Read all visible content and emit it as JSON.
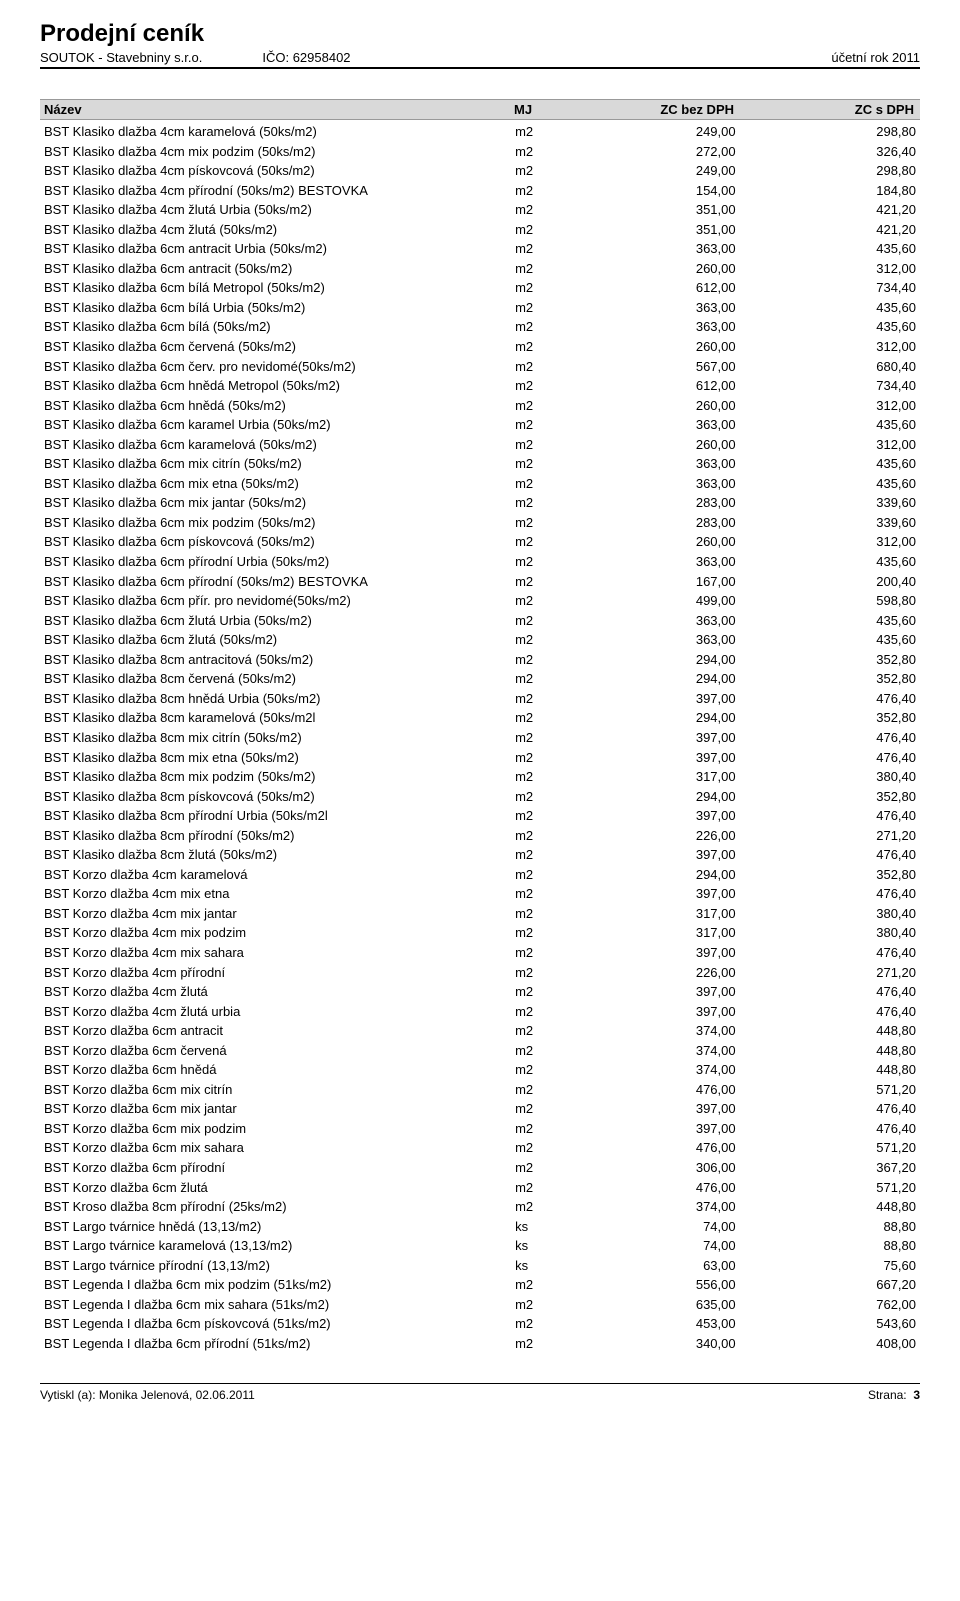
{
  "header": {
    "title": "Prodejní ceník",
    "company": "SOUTOK - Stavebniny  s.r.o.",
    "ico_label": "IČO:",
    "ico": "62958402",
    "year_label": "účetní rok  2011"
  },
  "columns": {
    "name": "Název",
    "mj": "MJ",
    "zc_bez": "ZC bez DPH",
    "zc_s": "ZC s DPH"
  },
  "rows": [
    {
      "name": "BST Klasiko dlažba 4cm karamelová (50ks/m2)",
      "mj": "m2",
      "p1": "249,00",
      "p2": "298,80"
    },
    {
      "name": "BST Klasiko dlažba 4cm mix podzim (50ks/m2)",
      "mj": "m2",
      "p1": "272,00",
      "p2": "326,40"
    },
    {
      "name": "BST Klasiko dlažba 4cm pískovcová (50ks/m2)",
      "mj": "m2",
      "p1": "249,00",
      "p2": "298,80"
    },
    {
      "name": "BST Klasiko dlažba 4cm přírodní (50ks/m2) BESTOVKA",
      "mj": "m2",
      "p1": "154,00",
      "p2": "184,80"
    },
    {
      "name": "BST Klasiko dlažba 4cm žlutá Urbia (50ks/m2)",
      "mj": "m2",
      "p1": "351,00",
      "p2": "421,20"
    },
    {
      "name": "BST Klasiko dlažba 4cm žlutá (50ks/m2)",
      "mj": "m2",
      "p1": "351,00",
      "p2": "421,20"
    },
    {
      "name": "BST Klasiko dlažba 6cm antracit Urbia (50ks/m2)",
      "mj": "m2",
      "p1": "363,00",
      "p2": "435,60"
    },
    {
      "name": "BST Klasiko dlažba 6cm antracit (50ks/m2)",
      "mj": "m2",
      "p1": "260,00",
      "p2": "312,00"
    },
    {
      "name": "BST Klasiko dlažba 6cm bílá Metropol (50ks/m2)",
      "mj": "m2",
      "p1": "612,00",
      "p2": "734,40"
    },
    {
      "name": "BST Klasiko dlažba 6cm bílá Urbia (50ks/m2)",
      "mj": "m2",
      "p1": "363,00",
      "p2": "435,60"
    },
    {
      "name": "BST Klasiko dlažba 6cm bílá (50ks/m2)",
      "mj": "m2",
      "p1": "363,00",
      "p2": "435,60"
    },
    {
      "name": "BST Klasiko dlažba 6cm červená (50ks/m2)",
      "mj": "m2",
      "p1": "260,00",
      "p2": "312,00"
    },
    {
      "name": "BST Klasiko dlažba 6cm červ. pro nevidomé(50ks/m2)",
      "mj": "m2",
      "p1": "567,00",
      "p2": "680,40"
    },
    {
      "name": "BST Klasiko dlažba 6cm hnědá Metropol (50ks/m2)",
      "mj": "m2",
      "p1": "612,00",
      "p2": "734,40"
    },
    {
      "name": "BST Klasiko dlažba 6cm hnědá (50ks/m2)",
      "mj": "m2",
      "p1": "260,00",
      "p2": "312,00"
    },
    {
      "name": "BST Klasiko dlažba 6cm karamel Urbia (50ks/m2)",
      "mj": "m2",
      "p1": "363,00",
      "p2": "435,60"
    },
    {
      "name": "BST Klasiko dlažba 6cm karamelová (50ks/m2)",
      "mj": "m2",
      "p1": "260,00",
      "p2": "312,00"
    },
    {
      "name": "BST Klasiko dlažba 6cm mix citrín (50ks/m2)",
      "mj": "m2",
      "p1": "363,00",
      "p2": "435,60"
    },
    {
      "name": "BST Klasiko dlažba 6cm mix etna (50ks/m2)",
      "mj": "m2",
      "p1": "363,00",
      "p2": "435,60"
    },
    {
      "name": "BST Klasiko dlažba 6cm mix jantar (50ks/m2)",
      "mj": "m2",
      "p1": "283,00",
      "p2": "339,60"
    },
    {
      "name": "BST Klasiko dlažba 6cm mix podzim (50ks/m2)",
      "mj": "m2",
      "p1": "283,00",
      "p2": "339,60"
    },
    {
      "name": "BST Klasiko dlažba 6cm pískovcová (50ks/m2)",
      "mj": "m2",
      "p1": "260,00",
      "p2": "312,00"
    },
    {
      "name": "BST Klasiko dlažba 6cm přírodní Urbia (50ks/m2)",
      "mj": "m2",
      "p1": "363,00",
      "p2": "435,60"
    },
    {
      "name": "BST Klasiko dlažba 6cm přírodní (50ks/m2) BESTOVKA",
      "mj": "m2",
      "p1": "167,00",
      "p2": "200,40"
    },
    {
      "name": "BST Klasiko dlažba 6cm přír. pro nevidomé(50ks/m2)",
      "mj": "m2",
      "p1": "499,00",
      "p2": "598,80"
    },
    {
      "name": "BST Klasiko dlažba 6cm žlutá Urbia (50ks/m2)",
      "mj": "m2",
      "p1": "363,00",
      "p2": "435,60"
    },
    {
      "name": "BST Klasiko dlažba 6cm žlutá (50ks/m2)",
      "mj": "m2",
      "p1": "363,00",
      "p2": "435,60"
    },
    {
      "name": "BST Klasiko dlažba 8cm antracitová (50ks/m2)",
      "mj": "m2",
      "p1": "294,00",
      "p2": "352,80"
    },
    {
      "name": "BST Klasiko dlažba 8cm červená (50ks/m2)",
      "mj": "m2",
      "p1": "294,00",
      "p2": "352,80"
    },
    {
      "name": "BST Klasiko dlažba 8cm hnědá Urbia (50ks/m2)",
      "mj": "m2",
      "p1": "397,00",
      "p2": "476,40"
    },
    {
      "name": "BST Klasiko dlažba 8cm karamelová (50ks/m2l",
      "mj": "m2",
      "p1": "294,00",
      "p2": "352,80"
    },
    {
      "name": "BST Klasiko dlažba 8cm mix citrín (50ks/m2)",
      "mj": "m2",
      "p1": "397,00",
      "p2": "476,40"
    },
    {
      "name": "BST Klasiko dlažba 8cm mix etna (50ks/m2)",
      "mj": "m2",
      "p1": "397,00",
      "p2": "476,40"
    },
    {
      "name": "BST Klasiko dlažba 8cm mix podzim (50ks/m2)",
      "mj": "m2",
      "p1": "317,00",
      "p2": "380,40"
    },
    {
      "name": "BST Klasiko dlažba 8cm pískovcová (50ks/m2)",
      "mj": "m2",
      "p1": "294,00",
      "p2": "352,80"
    },
    {
      "name": "BST Klasiko dlažba 8cm přírodní Urbia (50ks/m2l",
      "mj": "m2",
      "p1": "397,00",
      "p2": "476,40"
    },
    {
      "name": "BST Klasiko dlažba 8cm přírodní (50ks/m2)",
      "mj": "m2",
      "p1": "226,00",
      "p2": "271,20"
    },
    {
      "name": "BST Klasiko dlažba 8cm žlutá (50ks/m2)",
      "mj": "m2",
      "p1": "397,00",
      "p2": "476,40"
    },
    {
      "name": "BST Korzo dlažba 4cm karamelová",
      "mj": "m2",
      "p1": "294,00",
      "p2": "352,80"
    },
    {
      "name": "BST Korzo dlažba 4cm mix etna",
      "mj": "m2",
      "p1": "397,00",
      "p2": "476,40"
    },
    {
      "name": "BST Korzo dlažba 4cm mix jantar",
      "mj": "m2",
      "p1": "317,00",
      "p2": "380,40"
    },
    {
      "name": "BST Korzo dlažba 4cm mix podzim",
      "mj": "m2",
      "p1": "317,00",
      "p2": "380,40"
    },
    {
      "name": "BST Korzo dlažba 4cm mix sahara",
      "mj": "m2",
      "p1": "397,00",
      "p2": "476,40"
    },
    {
      "name": "BST Korzo dlažba 4cm přírodní",
      "mj": "m2",
      "p1": "226,00",
      "p2": "271,20"
    },
    {
      "name": "BST Korzo dlažba 4cm žlutá",
      "mj": "m2",
      "p1": "397,00",
      "p2": "476,40"
    },
    {
      "name": "BST Korzo dlažba 4cm žlutá urbia",
      "mj": "m2",
      "p1": "397,00",
      "p2": "476,40"
    },
    {
      "name": "BST Korzo dlažba 6cm antracit",
      "mj": "m2",
      "p1": "374,00",
      "p2": "448,80"
    },
    {
      "name": "BST Korzo dlažba 6cm červená",
      "mj": "m2",
      "p1": "374,00",
      "p2": "448,80"
    },
    {
      "name": "BST Korzo dlažba 6cm hnědá",
      "mj": "m2",
      "p1": "374,00",
      "p2": "448,80"
    },
    {
      "name": "BST Korzo dlažba 6cm mix citrín",
      "mj": "m2",
      "p1": "476,00",
      "p2": "571,20"
    },
    {
      "name": "BST Korzo dlažba 6cm mix jantar",
      "mj": "m2",
      "p1": "397,00",
      "p2": "476,40"
    },
    {
      "name": "BST Korzo dlažba 6cm mix podzim",
      "mj": "m2",
      "p1": "397,00",
      "p2": "476,40"
    },
    {
      "name": "BST Korzo dlažba 6cm mix sahara",
      "mj": "m2",
      "p1": "476,00",
      "p2": "571,20"
    },
    {
      "name": "BST Korzo dlažba 6cm přírodní",
      "mj": "m2",
      "p1": "306,00",
      "p2": "367,20"
    },
    {
      "name": "BST Korzo dlažba 6cm žlutá",
      "mj": "m2",
      "p1": "476,00",
      "p2": "571,20"
    },
    {
      "name": "BST Kroso dlažba 8cm přírodní (25ks/m2)",
      "mj": "m2",
      "p1": "374,00",
      "p2": "448,80"
    },
    {
      "name": "BST Largo tvárnice hnědá (13,13/m2)",
      "mj": "ks",
      "p1": "74,00",
      "p2": "88,80"
    },
    {
      "name": "BST Largo tvárnice karamelová (13,13/m2)",
      "mj": "ks",
      "p1": "74,00",
      "p2": "88,80"
    },
    {
      "name": "BST Largo tvárnice přírodní (13,13/m2)",
      "mj": "ks",
      "p1": "63,00",
      "p2": "75,60"
    },
    {
      "name": "BST Legenda I dlažba 6cm mix podzim (51ks/m2)",
      "mj": "m2",
      "p1": "556,00",
      "p2": "667,20"
    },
    {
      "name": "BST Legenda I dlažba 6cm mix sahara (51ks/m2)",
      "mj": "m2",
      "p1": "635,00",
      "p2": "762,00"
    },
    {
      "name": "BST Legenda I dlažba 6cm pískovcová (51ks/m2)",
      "mj": "m2",
      "p1": "453,00",
      "p2": "543,60"
    },
    {
      "name": "BST Legenda I dlažba 6cm přírodní (51ks/m2)",
      "mj": "m2",
      "p1": "340,00",
      "p2": "408,00"
    }
  ],
  "footer": {
    "printed_by": "Vytiskl (a): Monika Jelenová, 02.06.2011",
    "page_label": "Strana:",
    "page_no": "3"
  },
  "style": {
    "background": "#ffffff",
    "header_bg": "#d9d9d9",
    "text_color": "#000000",
    "font_family": "Arial",
    "title_fontsize": 24,
    "body_fontsize": 13,
    "footer_fontsize": 12
  }
}
